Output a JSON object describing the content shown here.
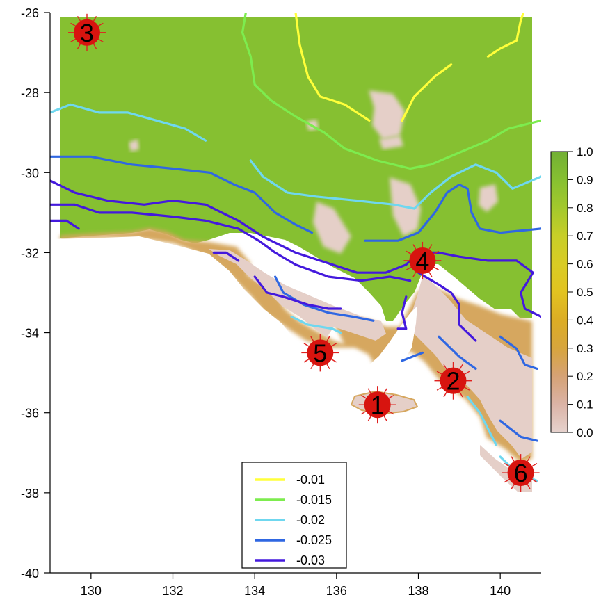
{
  "chart_data": {
    "type": "map",
    "xlim": [
      129,
      141
    ],
    "ylim": [
      -40,
      -26
    ],
    "x_ticks": [
      "130",
      "132",
      "134",
      "136",
      "138",
      "140"
    ],
    "y_ticks": [
      "-40",
      "-38",
      "-36",
      "-34",
      "-32",
      "-30",
      "-28",
      "-26"
    ],
    "colorbar": {
      "ticks": [
        "0.0",
        "0.1",
        "0.2",
        "0.3",
        "0.4",
        "0.5",
        "0.6",
        "0.7",
        "0.8",
        "0.9",
        "1.0"
      ],
      "colors": [
        "#e6d2cd",
        "#dbb3a6",
        "#d5a275",
        "#d7a53d",
        "#dcad24",
        "#e2c320",
        "#d9cc24",
        "#c7ce28",
        "#a3c92c",
        "#86c031",
        "#72b034"
      ]
    },
    "colors": {
      "land": "#86c031",
      "coast": "#d6a75e",
      "low": "#e5cfc8"
    },
    "legend": {
      "entries": [
        {
          "label": "-0.01",
          "color": "#ffff3a"
        },
        {
          "label": "-0.015",
          "color": "#7dec4e"
        },
        {
          "label": "-0.02",
          "color": "#6fd7ef"
        },
        {
          "label": "-0.025",
          "color": "#2f67e2"
        },
        {
          "label": "-0.03",
          "color": "#4419dd"
        }
      ]
    },
    "markers": [
      {
        "label": "1",
        "lon": 137.0,
        "lat": -35.8
      },
      {
        "label": "2",
        "lon": 138.85,
        "lat": -35.2
      },
      {
        "label": "3",
        "lon": 129.9,
        "lat": -26.5
      },
      {
        "label": "4",
        "lon": 138.1,
        "lat": -32.2
      },
      {
        "label": "5",
        "lon": 135.6,
        "lat": -34.5
      },
      {
        "label": "6",
        "lon": 140.5,
        "lat": -37.5
      }
    ],
    "contours": [
      {
        "level": "-0.01",
        "lines": [
          [
            [
              135.0,
              -26.0
            ],
            [
              135.1,
              -26.8
            ],
            [
              135.3,
              -27.6
            ],
            [
              135.6,
              -28.1
            ],
            [
              136.2,
              -28.3
            ],
            [
              136.8,
              -28.7
            ]
          ],
          [
            [
              137.6,
              -28.7
            ],
            [
              137.9,
              -28.1
            ],
            [
              138.1,
              -27.9
            ],
            [
              138.4,
              -27.6
            ],
            [
              138.8,
              -27.3
            ]
          ],
          [
            [
              139.7,
              -27.1
            ],
            [
              140.0,
              -26.9
            ],
            [
              140.4,
              -26.7
            ],
            [
              140.5,
              -26.2
            ],
            [
              140.6,
              -25.9
            ]
          ]
        ]
      },
      {
        "level": "-0.015",
        "lines": [
          [
            [
              133.8,
              -25.9
            ],
            [
              133.7,
              -26.5
            ],
            [
              133.9,
              -27.1
            ],
            [
              134.0,
              -27.8
            ],
            [
              134.4,
              -28.2
            ],
            [
              135.0,
              -28.6
            ],
            [
              135.7,
              -29.0
            ],
            [
              136.2,
              -29.4
            ],
            [
              137.0,
              -29.7
            ],
            [
              137.8,
              -29.9
            ],
            [
              138.3,
              -29.8
            ],
            [
              139.0,
              -29.5
            ],
            [
              139.7,
              -29.2
            ],
            [
              140.2,
              -28.9
            ],
            [
              141.0,
              -28.7
            ]
          ]
        ]
      },
      {
        "level": "-0.02",
        "lines": [
          [
            [
              129.0,
              -28.5
            ],
            [
              129.5,
              -28.3
            ],
            [
              130.2,
              -28.5
            ],
            [
              130.9,
              -28.5
            ],
            [
              131.6,
              -28.7
            ],
            [
              132.3,
              -28.9
            ],
            [
              132.8,
              -29.2
            ]
          ],
          [
            [
              133.9,
              -29.7
            ],
            [
              134.2,
              -30.1
            ],
            [
              134.8,
              -30.5
            ],
            [
              135.5,
              -30.6
            ],
            [
              136.5,
              -30.7
            ],
            [
              137.4,
              -30.8
            ],
            [
              137.9,
              -30.9
            ],
            [
              138.3,
              -30.5
            ],
            [
              138.8,
              -30.1
            ],
            [
              139.4,
              -29.8
            ],
            [
              139.9,
              -30.0
            ],
            [
              140.3,
              -30.4
            ],
            [
              141.0,
              -30.1
            ]
          ],
          [
            [
              134.9,
              -33.6
            ],
            [
              135.3,
              -33.8
            ],
            [
              135.9,
              -33.9
            ],
            [
              136.1,
              -34.0
            ]
          ],
          [
            [
              139.2,
              -35.6
            ],
            [
              139.5,
              -36.0
            ],
            [
              139.7,
              -36.4
            ],
            [
              139.9,
              -36.8
            ]
          ],
          [
            [
              140.0,
              -37.1
            ],
            [
              140.4,
              -37.5
            ],
            [
              140.9,
              -37.7
            ]
          ]
        ]
      },
      {
        "level": "-0.025",
        "lines": [
          [
            [
              129.0,
              -29.6
            ],
            [
              130.0,
              -29.6
            ],
            [
              131.0,
              -29.8
            ],
            [
              132.0,
              -29.9
            ],
            [
              132.9,
              -30.0
            ],
            [
              133.5,
              -30.3
            ],
            [
              134.0,
              -30.5
            ],
            [
              134.5,
              -31.0
            ],
            [
              135.0,
              -31.3
            ],
            [
              135.4,
              -31.5
            ]
          ],
          [
            [
              136.7,
              -31.7
            ],
            [
              137.5,
              -31.7
            ],
            [
              138.0,
              -31.5
            ],
            [
              138.4,
              -31.0
            ],
            [
              138.7,
              -30.5
            ],
            [
              139.0,
              -30.3
            ],
            [
              139.2,
              -30.4
            ],
            [
              139.3,
              -31.0
            ],
            [
              139.5,
              -31.4
            ],
            [
              140.0,
              -31.5
            ],
            [
              141.0,
              -31.4
            ]
          ],
          [
            [
              134.5,
              -32.6
            ],
            [
              134.7,
              -33.0
            ],
            [
              135.2,
              -33.3
            ],
            [
              135.8,
              -33.5
            ],
            [
              136.4,
              -33.6
            ],
            [
              136.9,
              -33.7
            ]
          ],
          [
            [
              137.6,
              -34.7
            ],
            [
              138.1,
              -34.5
            ]
          ],
          [
            [
              138.5,
              -34.1
            ],
            [
              139.0,
              -34.6
            ],
            [
              139.4,
              -34.9
            ]
          ],
          [
            [
              140.0,
              -34.1
            ],
            [
              140.4,
              -34.4
            ],
            [
              140.6,
              -34.8
            ],
            [
              140.9,
              -34.9
            ]
          ],
          [
            [
              140.0,
              -36.2
            ],
            [
              140.5,
              -36.6
            ],
            [
              140.9,
              -36.7
            ]
          ]
        ]
      },
      {
        "level": "-0.03",
        "lines": [
          [
            [
              129.0,
              -30.2
            ],
            [
              129.6,
              -30.5
            ],
            [
              130.4,
              -30.7
            ],
            [
              131.3,
              -30.8
            ],
            [
              132.0,
              -30.7
            ],
            [
              132.8,
              -30.8
            ],
            [
              133.6,
              -31.2
            ],
            [
              134.2,
              -31.6
            ],
            [
              135.0,
              -32.0
            ],
            [
              135.9,
              -32.3
            ],
            [
              136.5,
              -32.5
            ],
            [
              137.2,
              -32.5
            ],
            [
              137.7,
              -32.3
            ],
            [
              138.0,
              -32.0
            ],
            [
              138.5,
              -32.0
            ],
            [
              139.0,
              -32.1
            ],
            [
              139.7,
              -32.2
            ],
            [
              140.4,
              -32.2
            ],
            [
              140.8,
              -32.5
            ],
            [
              140.5,
              -33.0
            ],
            [
              140.6,
              -33.4
            ],
            [
              141.0,
              -33.6
            ]
          ],
          [
            [
              129.0,
              -30.8
            ],
            [
              129.6,
              -30.8
            ],
            [
              130.2,
              -31.0
            ],
            [
              131.0,
              -31.0
            ],
            [
              132.0,
              -31.1
            ],
            [
              132.8,
              -31.2
            ],
            [
              133.6,
              -31.4
            ],
            [
              134.1,
              -31.7
            ],
            [
              134.5,
              -32.0
            ],
            [
              135.0,
              -32.3
            ],
            [
              135.8,
              -32.6
            ],
            [
              136.6,
              -32.7
            ],
            [
              137.3,
              -32.6
            ],
            [
              137.8,
              -32.7
            ]
          ],
          [
            [
              129.0,
              -31.2
            ],
            [
              129.4,
              -31.2
            ],
            [
              129.7,
              -31.4
            ]
          ],
          [
            [
              133.0,
              -32.0
            ],
            [
              133.3,
              -32.0
            ],
            [
              133.6,
              -32.2
            ]
          ],
          [
            [
              134.0,
              -32.6
            ],
            [
              134.3,
              -33.0
            ],
            [
              134.7,
              -33.1
            ],
            [
              135.3,
              -33.3
            ],
            [
              135.8,
              -33.4
            ],
            [
              136.1,
              -33.4
            ]
          ],
          [
            [
              137.7,
              -33.1
            ],
            [
              137.6,
              -33.5
            ],
            [
              137.7,
              -33.9
            ],
            [
              137.5,
              -33.9
            ]
          ],
          [
            [
              138.0,
              -32.5
            ],
            [
              138.5,
              -32.8
            ],
            [
              138.8,
              -33.0
            ],
            [
              139.0,
              -33.3
            ],
            [
              139.0,
              -33.8
            ],
            [
              139.4,
              -34.2
            ]
          ]
        ]
      }
    ]
  }
}
